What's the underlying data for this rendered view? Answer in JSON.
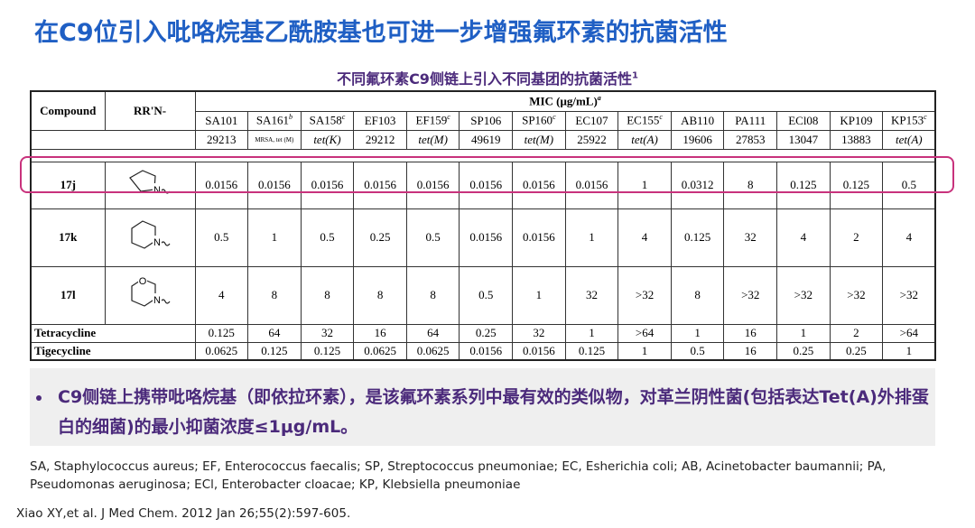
{
  "title": "在C9位引入吡咯烷基乙酰胺基也可进一步增强氟环素的抗菌活性",
  "caption": {
    "text": "不同氟环素C9侧链上引入不同基团的抗菌活性",
    "sup": "1"
  },
  "table": {
    "compound_header": "Compound",
    "group_header": "RR'N-",
    "mic_header": {
      "text": "MIC (μg/mL)",
      "sup": "a"
    },
    "strains": [
      {
        "name": "SA101",
        "code": "29213"
      },
      {
        "name": "SA161",
        "sup": "b",
        "code": "MRSA, tet (M)"
      },
      {
        "name": "SA158",
        "sup": "c",
        "code": "tet(K)"
      },
      {
        "name": "EF103",
        "code": "29212"
      },
      {
        "name": "EF159",
        "sup": "c",
        "code": "tet(M)"
      },
      {
        "name": "SP106",
        "code": "49619"
      },
      {
        "name": "SP160",
        "sup": "c",
        "code": "tet(M)"
      },
      {
        "name": "EC107",
        "code": "25922"
      },
      {
        "name": "EC155",
        "sup": "c",
        "code": "tet(A)"
      },
      {
        "name": "AB110",
        "code": "19606"
      },
      {
        "name": "PA111",
        "code": "27853"
      },
      {
        "name": "ECl08",
        "code": "13047"
      },
      {
        "name": "KP109",
        "code": "13883"
      },
      {
        "name": "KP153",
        "sup": "c",
        "code": "tet(A)"
      }
    ],
    "rows": [
      {
        "compound": "17j",
        "ring": "pyrrolidine",
        "atoms": [
          "N"
        ],
        "values": [
          "0.0156",
          "0.0156",
          "0.0156",
          "0.0156",
          "0.0156",
          "0.0156",
          "0.0156",
          "0.0156",
          "1",
          "0.0312",
          "8",
          "0.125",
          "0.125",
          "0.5"
        ]
      },
      {
        "compound": "17k",
        "ring": "piperidine",
        "atoms": [
          "N"
        ],
        "values": [
          "0.5",
          "1",
          "0.5",
          "0.25",
          "0.5",
          "0.0156",
          "0.0156",
          "1",
          "4",
          "0.125",
          "32",
          "4",
          "2",
          "4"
        ]
      },
      {
        "compound": "17l",
        "ring": "morpholine",
        "atoms": [
          "O",
          "N"
        ],
        "values": [
          "4",
          "8",
          "8",
          "8",
          "8",
          "0.5",
          "1",
          "32",
          ">32",
          "8",
          ">32",
          ">32",
          ">32",
          ">32"
        ]
      },
      {
        "compound": "Tetracycline",
        "values": [
          "0.125",
          "64",
          "32",
          "16",
          "64",
          "0.25",
          "32",
          "1",
          ">64",
          "1",
          "16",
          "1",
          "2",
          ">64"
        ]
      },
      {
        "compound": "Tigecycline",
        "values": [
          "0.0625",
          "0.125",
          "0.125",
          "0.0625",
          "0.0625",
          "0.0156",
          "0.0156",
          "0.125",
          "1",
          "0.5",
          "16",
          "0.25",
          "0.25",
          "1"
        ]
      }
    ]
  },
  "bullet": "C9侧链上携带吡咯烷基（即依拉环素），是该氟环素系列中最有效的类似物，对革兰阴性菌(包括表达Tet(A)外排蛋白的细菌)的最小抑菌浓度≤1μg/mL。",
  "footnote": "SA, Staphylococcus aureus; EF, Enterococcus faecalis; SP, Streptococcus pneumoniae; EC, Esherichia coli; AB, Acinetobacter baumannii; PA, Pseudomonas aeruginosa; ECl, Enterobacter cloacae; KP, Klebsiella pneumoniae",
  "citation": "Xiao XY,et al. J Med Chem. 2012 Jan 26;55(2):597-605."
}
